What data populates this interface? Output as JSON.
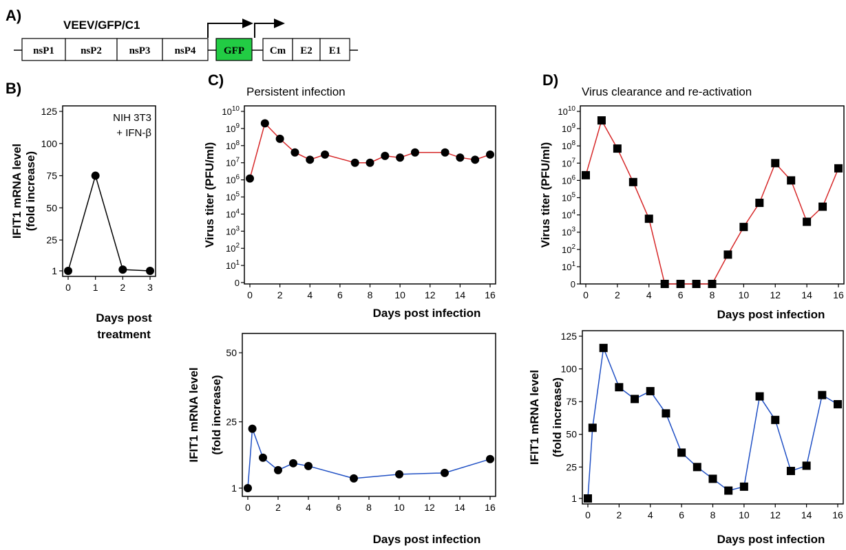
{
  "panelA": {
    "label": "A)",
    "construct": "VEEV/GFP/C1",
    "genes": [
      "nsP1",
      "nsP2",
      "nsP3",
      "nsP4",
      "GFP",
      "Cm",
      "E2",
      "E1"
    ],
    "gfp_color": "#22cc44"
  },
  "chart_data": [
    {
      "id": "B",
      "panel_label": "B)",
      "type": "line",
      "title": "",
      "annotation_lines": [
        "NIH 3T3",
        "+ IFN-β"
      ],
      "xlabel_lines": [
        "Days post",
        "treatment"
      ],
      "ylabel_lines": [
        "IFIT1 mRNA level",
        "(fold increase)"
      ],
      "xlim": [
        0,
        3
      ],
      "ylim": [
        1,
        125
      ],
      "xticks": [
        0,
        1,
        2,
        3
      ],
      "yticks": [
        1,
        25,
        50,
        75,
        100,
        125
      ],
      "series": [
        {
          "x": [
            0,
            1,
            2,
            3
          ],
          "y": [
            1,
            75,
            2,
            1
          ],
          "color": "#000000",
          "marker": "circle"
        }
      ]
    },
    {
      "id": "C-top",
      "panel_label": "C)",
      "type": "line",
      "title": "Persistent infection",
      "xlabel_lines": [
        "Days post infection"
      ],
      "ylabel_lines": [
        "Virus titer (PFU/ml)"
      ],
      "yscale": "log",
      "xlim": [
        0,
        16
      ],
      "xticks": [
        0,
        2,
        4,
        6,
        8,
        10,
        12,
        14,
        16
      ],
      "ytick_exponents": [
        0,
        1,
        2,
        3,
        4,
        5,
        6,
        7,
        8,
        9,
        10
      ],
      "series": [
        {
          "x": [
            0,
            1,
            2,
            3,
            4,
            5,
            7,
            8,
            9,
            10,
            11,
            13,
            14,
            15,
            16
          ],
          "y": [
            1200000.0,
            2000000000.0,
            250000000.0,
            40000000.0,
            15000000.0,
            30000000.0,
            10000000.0,
            10000000.0,
            25000000.0,
            20000000.0,
            40000000.0,
            40000000.0,
            20000000.0,
            15000000.0,
            30000000.0
          ],
          "color": "#d62728",
          "marker": "circle"
        }
      ]
    },
    {
      "id": "C-bottom",
      "type": "line",
      "xlabel_lines": [
        "Days post infection"
      ],
      "ylabel_lines": [
        "IFIT1 mRNA level",
        "(fold increase)"
      ],
      "xlim": [
        0,
        16
      ],
      "ylim": [
        0,
        55
      ],
      "xticks": [
        0,
        2,
        4,
        6,
        8,
        10,
        12,
        14,
        16
      ],
      "yticks": [
        1,
        25,
        50
      ],
      "series": [
        {
          "x": [
            0,
            0.3,
            1,
            2,
            3,
            4,
            7,
            10,
            13,
            16
          ],
          "y": [
            1,
            22.5,
            12,
            7.5,
            10,
            9,
            4.5,
            6,
            6.5,
            11.5
          ],
          "color": "#1f4fc4",
          "marker": "circle"
        }
      ]
    },
    {
      "id": "D-top",
      "panel_label": "D)",
      "type": "line",
      "title": "Virus clearance and re-activation",
      "xlabel_lines": [
        "Days post infection"
      ],
      "ylabel_lines": [
        "Virus titer (PFU/ml)"
      ],
      "yscale": "log",
      "xlim": [
        0,
        16
      ],
      "xticks": [
        0,
        2,
        4,
        6,
        8,
        10,
        12,
        14,
        16
      ],
      "ytick_exponents": [
        0,
        1,
        2,
        3,
        4,
        5,
        6,
        7,
        8,
        9,
        10
      ],
      "series": [
        {
          "x": [
            0,
            1,
            2,
            3,
            4,
            5,
            6,
            7,
            8,
            9,
            10,
            11,
            12,
            13,
            14,
            15,
            16
          ],
          "y": [
            2000000.0,
            3000000000.0,
            70000000.0,
            800000.0,
            6000.0,
            0,
            0,
            0,
            0,
            50,
            2000.0,
            50000.0,
            10000000.0,
            1000000.0,
            4000.0,
            30000.0,
            5000000.0
          ],
          "color": "#d62728",
          "marker": "square"
        }
      ]
    },
    {
      "id": "D-bottom",
      "type": "line",
      "xlabel_lines": [
        "Days post infection"
      ],
      "ylabel_lines": [
        "IFIT1 mRNA level",
        "(fold increase)"
      ],
      "xlim": [
        0,
        16
      ],
      "ylim": [
        1,
        125
      ],
      "xticks": [
        0,
        2,
        4,
        6,
        8,
        10,
        12,
        14,
        16
      ],
      "yticks": [
        1,
        25,
        50,
        75,
        100,
        125
      ],
      "series": [
        {
          "x": [
            0,
            0.3,
            1,
            2,
            3,
            4,
            5,
            6,
            7,
            8,
            9,
            10,
            11,
            12,
            13,
            14,
            15,
            16
          ],
          "y": [
            1,
            55,
            116,
            86,
            77,
            83,
            66,
            36,
            25,
            16,
            7,
            10,
            79,
            61,
            22,
            26,
            80,
            73
          ],
          "color": "#1f4fc4",
          "marker": "square"
        }
      ]
    }
  ]
}
